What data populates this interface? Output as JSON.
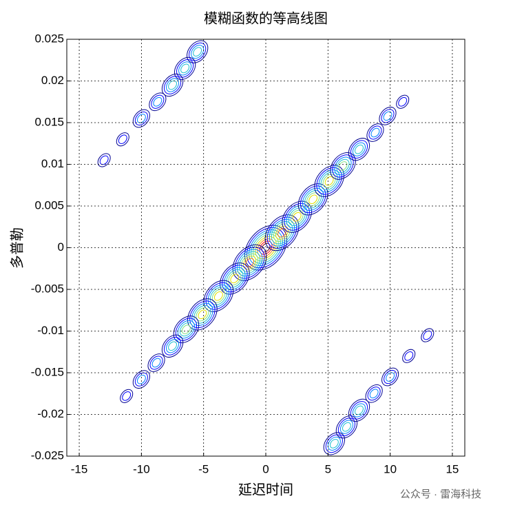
{
  "chart_data": {
    "type": "contour",
    "title": "模糊函数的等高线图",
    "xlabel": "延迟时间",
    "ylabel": "多普勒",
    "watermark": "公众号 · 雷海科技",
    "xlim": [
      -16,
      16
    ],
    "xticks": [
      -15,
      -10,
      -5,
      0,
      5,
      10,
      15
    ],
    "ylim": [
      -0.025,
      0.025
    ],
    "yticks": [
      -0.025,
      -0.02,
      -0.015,
      -0.01,
      -0.005,
      0,
      0.005,
      0.01,
      0.015,
      0.02,
      0.025
    ],
    "grid": true,
    "colors": [
      "#00008f",
      "#0000ff",
      "#0080ff",
      "#20c0d0",
      "#80e080",
      "#e0e000",
      "#ff8000",
      "#ff0000",
      "#800000"
    ],
    "peaks": {
      "x": [
        0,
        1.3,
        -1.3,
        2.5,
        -2.5,
        3.8,
        -3.8,
        5.1,
        -5.1,
        6.2,
        -6.4,
        7.5,
        -7.5,
        8.8,
        -8.8,
        9.8,
        -10,
        11,
        -11.2,
        -5.5,
        -6.5,
        -7.5,
        -8.7,
        -10,
        -11.5,
        -13,
        5.5,
        6.5,
        7.5,
        8.7,
        10,
        11.5,
        13
      ],
      "y": [
        0,
        0.0018,
        -0.0018,
        0.0037,
        -0.0037,
        0.0058,
        -0.0058,
        0.008,
        -0.008,
        0.0098,
        -0.0098,
        0.0118,
        -0.0118,
        0.0138,
        -0.0138,
        0.0158,
        -0.0158,
        0.0175,
        -0.0178,
        0.0235,
        0.0215,
        0.0195,
        0.0175,
        0.0155,
        0.013,
        0.0105,
        -0.0235,
        -0.0215,
        -0.0195,
        -0.0175,
        -0.0155,
        -0.013,
        -0.0105
      ],
      "level": [
        9,
        7,
        7,
        6,
        6,
        6,
        6,
        6,
        6,
        5,
        5,
        4,
        4,
        3,
        3,
        3,
        3,
        2,
        2,
        4,
        4,
        4,
        3,
        3,
        2,
        2,
        4,
        4,
        4,
        3,
        3,
        2,
        2
      ]
    }
  }
}
